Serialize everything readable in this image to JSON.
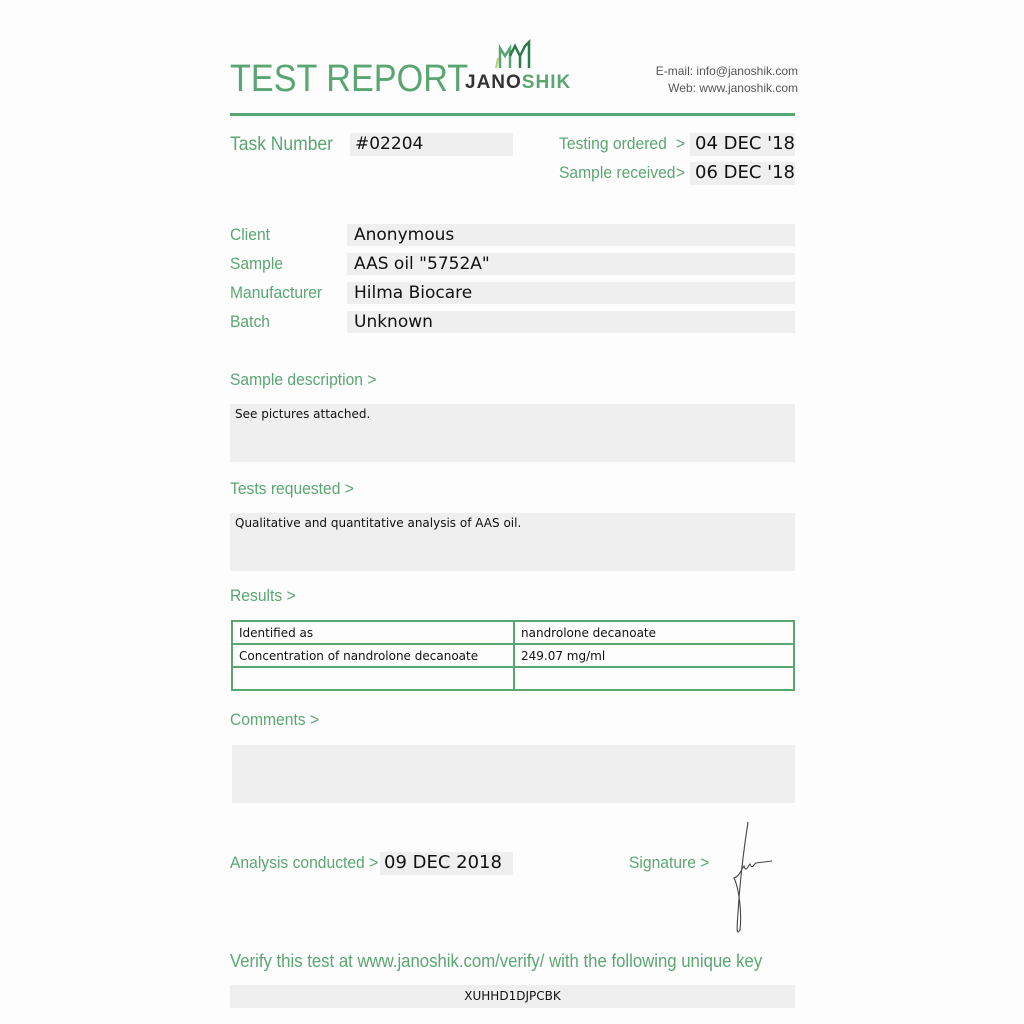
{
  "header": {
    "title": "TEST REPORT",
    "logo_text_a": "JANO",
    "logo_text_b": "SHIK",
    "email": "E-mail: info@janoshik.com",
    "web": "Web: www.janoshik.com"
  },
  "task": {
    "label": "Task Number",
    "value": "#02204"
  },
  "dates": {
    "ordered_label": "Testing ordered",
    "ordered_value": "04 DEC '18",
    "received_label": "Sample received",
    "received_value": "06 DEC '18",
    "arrow": ">"
  },
  "info": [
    {
      "label": "Client",
      "value": "Anonymous"
    },
    {
      "label": "Sample",
      "value": "AAS oil \"5752A\""
    },
    {
      "label": "Manufacturer",
      "value": "Hilma Biocare"
    },
    {
      "label": "Batch",
      "value": "Unknown"
    }
  ],
  "sample_description": {
    "label": "Sample description >",
    "text": "See pictures attached."
  },
  "tests_requested": {
    "label": "Tests requested >",
    "text": "Qualitative and quantitative analysis of AAS oil."
  },
  "results": {
    "label": "Results >",
    "rows": [
      [
        "Identified as",
        "nandrolone decanoate"
      ],
      [
        "Concentration of nandrolone decanoate",
        "249.07 mg/ml"
      ],
      [
        "",
        ""
      ]
    ]
  },
  "comments": {
    "label": "Comments >",
    "text": ""
  },
  "analysis": {
    "label": "Analysis conducted >",
    "value": "09 DEC 2018"
  },
  "signature": {
    "label": "Signature >"
  },
  "verify": {
    "text": "Verify this test at www.janoshik.com/verify/ with the following unique key",
    "key": "XUHHD1DJPCBK"
  },
  "colors": {
    "accent": "#5aa672",
    "field": "#efefef"
  }
}
